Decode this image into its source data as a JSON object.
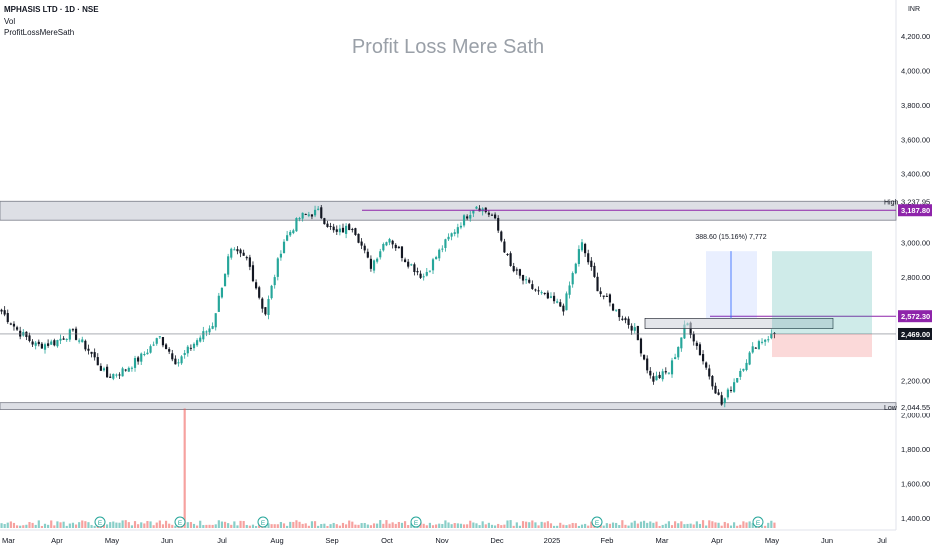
{
  "header": {
    "symbol_line": "MPHASIS LTD · 1D · NSE",
    "volume_label": "Vol",
    "indicator_label": "ProfitLossMereSath"
  },
  "watermark_title": "Profit Loss Mere Sath",
  "currency": "INR",
  "colors": {
    "up": "#26a69a",
    "down": "#131722",
    "level": "#8e24aa",
    "zone": "#d1d4dc"
  },
  "chart_data": {
    "type": "candlestick",
    "title": "Profit Loss Mere Sath",
    "y_range": [
      1380,
      4300
    ],
    "y_ticks": [
      "4,200.00",
      "4,000.00",
      "3,800.00",
      "3,600.00",
      "3,400.00",
      "3,000.00",
      "2,800.00",
      "2,200.00",
      "2,000.00",
      "1,800.00",
      "1,600.00",
      "1,400.00"
    ],
    "x_labels": [
      "Mar",
      "Apr",
      "May",
      "Jun",
      "Jul",
      "Aug",
      "Sep",
      "Oct",
      "Nov",
      "Dec",
      "2025",
      "Feb",
      "Mar",
      "Apr",
      "May",
      "Jun",
      "Jul"
    ],
    "price_labels": [
      {
        "tag": "High",
        "value": 3237.95,
        "text": "3,237.95",
        "style": "plain"
      },
      {
        "tag": "",
        "value": 3187.8,
        "text": "3,187.80",
        "style": "purple"
      },
      {
        "tag": "",
        "value": 2572.3,
        "text": "2,572.30",
        "style": "purple"
      },
      {
        "tag": "",
        "value": 2469.0,
        "text": "2,469.00",
        "style": "black"
      },
      {
        "tag": "Low",
        "value": 2044.55,
        "text": "2,044.55",
        "style": "plain"
      }
    ],
    "zones": [
      {
        "name": "resistance",
        "from": 3130,
        "to": 3240
      },
      {
        "name": "support",
        "from": 2030,
        "to": 2070
      }
    ],
    "measure": {
      "label": "388.60 (15.16%) 7,772",
      "from": 2560,
      "to": 2950
    },
    "position": {
      "entry": 2469,
      "target": 2950,
      "stop": 2335
    },
    "last_price": 2469.0,
    "closes": [
      {
        "date": "Mar",
        "close": 2600
      },
      {
        "date": "Mar",
        "close": 2480
      },
      {
        "date": "Mar",
        "close": 2400
      },
      {
        "date": "Apr",
        "close": 2420
      },
      {
        "date": "Apr",
        "close": 2480
      },
      {
        "date": "Apr",
        "close": 2370
      },
      {
        "date": "May",
        "close": 2220
      },
      {
        "date": "May",
        "close": 2260
      },
      {
        "date": "May",
        "close": 2340
      },
      {
        "date": "Jun",
        "close": 2450
      },
      {
        "date": "Jun",
        "close": 2300
      },
      {
        "date": "Jun",
        "close": 2420
      },
      {
        "date": "Jul",
        "close": 2520
      },
      {
        "date": "Jul",
        "close": 2950
      },
      {
        "date": "Jul",
        "close": 2900
      },
      {
        "date": "Aug",
        "close": 2580
      },
      {
        "date": "Aug",
        "close": 3000
      },
      {
        "date": "Aug",
        "close": 3150
      },
      {
        "date": "Sep",
        "close": 3180
      },
      {
        "date": "Sep",
        "close": 3050
      },
      {
        "date": "Sep",
        "close": 3100
      },
      {
        "date": "Oct",
        "close": 2860
      },
      {
        "date": "Oct",
        "close": 3040
      },
      {
        "date": "Oct",
        "close": 2900
      },
      {
        "date": "Nov",
        "close": 2800
      },
      {
        "date": "Nov",
        "close": 2960
      },
      {
        "date": "Nov",
        "close": 3100
      },
      {
        "date": "Dec",
        "close": 3220
      },
      {
        "date": "Dec",
        "close": 3150
      },
      {
        "date": "Dec",
        "close": 2850
      },
      {
        "date": "2025",
        "close": 2750
      },
      {
        "date": "2025",
        "close": 2680
      },
      {
        "date": "2025",
        "close": 2620
      },
      {
        "date": "Feb",
        "close": 3000
      },
      {
        "date": "Feb",
        "close": 2720
      },
      {
        "date": "Feb",
        "close": 2600
      },
      {
        "date": "Mar",
        "close": 2500
      },
      {
        "date": "Mar",
        "close": 2200
      },
      {
        "date": "Mar",
        "close": 2250
      },
      {
        "date": "Apr",
        "close": 2540
      },
      {
        "date": "Apr",
        "close": 2300
      },
      {
        "date": "Apr",
        "close": 2060
      },
      {
        "date": "Apr",
        "close": 2250
      },
      {
        "date": "Apr",
        "close": 2420
      },
      {
        "date": "May",
        "close": 2469
      }
    ],
    "volume_events": [
      "E",
      "E",
      "E",
      "E",
      "E",
      "E"
    ]
  }
}
